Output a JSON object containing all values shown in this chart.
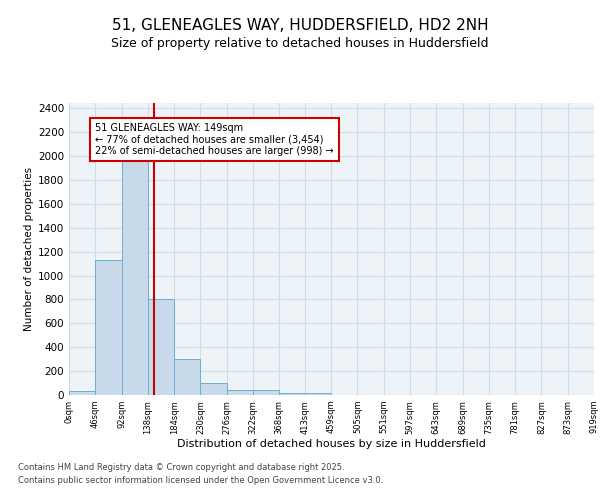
{
  "title1": "51, GLENEAGLES WAY, HUDDERSFIELD, HD2 2NH",
  "title2": "Size of property relative to detached houses in Huddersfield",
  "xlabel": "Distribution of detached houses by size in Huddersfield",
  "ylabel": "Number of detached properties",
  "annotation_line1": "51 GLENEAGLES WAY: 149sqm",
  "annotation_line2": "← 77% of detached houses are smaller (3,454)",
  "annotation_line3": "22% of semi-detached houses are larger (998) →",
  "property_size": 149,
  "bar_values": [
    30,
    1130,
    2020,
    800,
    300,
    100,
    45,
    40,
    20,
    15,
    0,
    0,
    0,
    0,
    0,
    0,
    0,
    0,
    0,
    0
  ],
  "bin_edges": [
    0,
    46,
    92,
    138,
    184,
    230,
    276,
    322,
    368,
    413,
    459,
    505,
    551,
    597,
    643,
    689,
    735,
    781,
    827,
    873,
    919
  ],
  "bar_color": "#c8daea",
  "bar_edge_color": "#6aafd4",
  "vline_color": "#cc0000",
  "vline_x": 149,
  "ylim": [
    0,
    2450
  ],
  "yticks": [
    0,
    200,
    400,
    600,
    800,
    1000,
    1200,
    1400,
    1600,
    1800,
    2000,
    2200,
    2400
  ],
  "bg_color": "#eef3f8",
  "grid_color": "#d0dce8",
  "footer_line1": "Contains HM Land Registry data © Crown copyright and database right 2025.",
  "footer_line2": "Contains public sector information licensed under the Open Government Licence v3.0.",
  "title1_fontsize": 11,
  "title2_fontsize": 9,
  "annotation_box_color": "#cc0000",
  "annotation_bg": "#ffffff"
}
